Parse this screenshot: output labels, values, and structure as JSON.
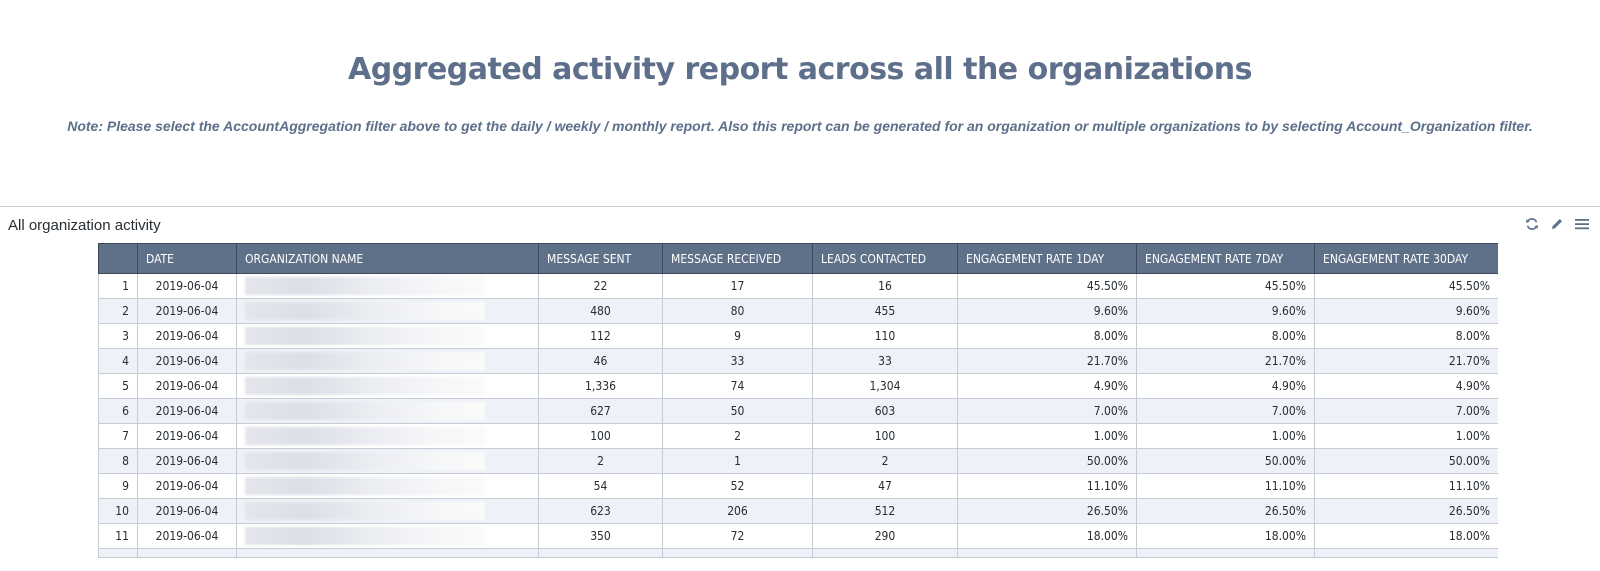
{
  "report": {
    "title": "Aggregated activity report across all the organizations",
    "note": "Note: Please select the AccountAggregation filter above to get the daily / weekly / monthly report.  Also  this report  can be generated for an organization or multiple organizations to by selecting Account_Organization filter."
  },
  "tile": {
    "title": "All organization activity",
    "actions": [
      {
        "name": "refresh-icon"
      },
      {
        "name": "edit-icon"
      },
      {
        "name": "menu-icon"
      }
    ]
  },
  "table": {
    "columns": [
      "",
      "DATE",
      "ORGANIZATION NAME",
      "MESSAGE SENT",
      "MESSAGE RECEIVED",
      "LEADS CONTACTED",
      "ENGAGEMENT RATE 1DAY",
      "ENGAGEMENT RATE 7DAY",
      "ENGAGEMENT RATE 30DAY"
    ],
    "rows": [
      {
        "idx": "1",
        "date": "2019-06-04",
        "sent": "22",
        "received": "17",
        "leads": "16",
        "rate1": "45.50%",
        "rate7": "45.50%",
        "rate30": "45.50%"
      },
      {
        "idx": "2",
        "date": "2019-06-04",
        "sent": "480",
        "received": "80",
        "leads": "455",
        "rate1": "9.60%",
        "rate7": "9.60%",
        "rate30": "9.60%"
      },
      {
        "idx": "3",
        "date": "2019-06-04",
        "sent": "112",
        "received": "9",
        "leads": "110",
        "rate1": "8.00%",
        "rate7": "8.00%",
        "rate30": "8.00%"
      },
      {
        "idx": "4",
        "date": "2019-06-04",
        "sent": "46",
        "received": "33",
        "leads": "33",
        "rate1": "21.70%",
        "rate7": "21.70%",
        "rate30": "21.70%"
      },
      {
        "idx": "5",
        "date": "2019-06-04",
        "sent": "1,336",
        "received": "74",
        "leads": "1,304",
        "rate1": "4.90%",
        "rate7": "4.90%",
        "rate30": "4.90%"
      },
      {
        "idx": "6",
        "date": "2019-06-04",
        "sent": "627",
        "received": "50",
        "leads": "603",
        "rate1": "7.00%",
        "rate7": "7.00%",
        "rate30": "7.00%"
      },
      {
        "idx": "7",
        "date": "2019-06-04",
        "sent": "100",
        "received": "2",
        "leads": "100",
        "rate1": "1.00%",
        "rate7": "1.00%",
        "rate30": "1.00%"
      },
      {
        "idx": "8",
        "date": "2019-06-04",
        "sent": "2",
        "received": "1",
        "leads": "2",
        "rate1": "50.00%",
        "rate7": "50.00%",
        "rate30": "50.00%"
      },
      {
        "idx": "9",
        "date": "2019-06-04",
        "sent": "54",
        "received": "52",
        "leads": "47",
        "rate1": "11.10%",
        "rate7": "11.10%",
        "rate30": "11.10%"
      },
      {
        "idx": "10",
        "date": "2019-06-04",
        "sent": "623",
        "received": "206",
        "leads": "512",
        "rate1": "26.50%",
        "rate7": "26.50%",
        "rate30": "26.50%"
      },
      {
        "idx": "11",
        "date": "2019-06-04",
        "sent": "350",
        "received": "72",
        "leads": "290",
        "rate1": "18.00%",
        "rate7": "18.00%",
        "rate30": "18.00%"
      }
    ]
  }
}
